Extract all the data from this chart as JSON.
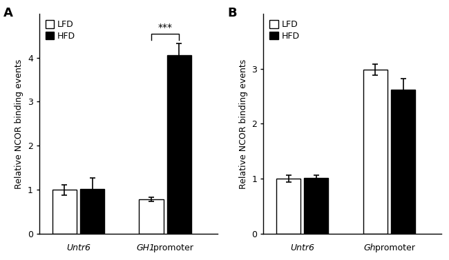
{
  "panel_A": {
    "label": "A",
    "group_label_parts": [
      {
        "italic": "Untr6",
        "normal": ""
      },
      {
        "italic": "GH1",
        "normal": " promoter"
      }
    ],
    "LFD_values": [
      1.0,
      0.78
    ],
    "HFD_values": [
      1.02,
      4.05
    ],
    "LFD_errors": [
      0.12,
      0.05
    ],
    "HFD_errors": [
      0.25,
      0.28
    ],
    "ylabel": "Relative NCOR binding events",
    "ylim": [
      0,
      5
    ],
    "yticks": [
      0,
      1,
      2,
      3,
      4
    ],
    "sig_y": 4.55,
    "sig_tick": 0.15,
    "sig_text": "***"
  },
  "panel_B": {
    "label": "B",
    "group_label_parts": [
      {
        "italic": "Untr6",
        "normal": ""
      },
      {
        "italic": "Gh",
        "normal": " promoter"
      }
    ],
    "LFD_values": [
      1.0,
      2.98
    ],
    "HFD_values": [
      1.02,
      2.62
    ],
    "LFD_errors": [
      0.06,
      0.1
    ],
    "HFD_errors": [
      0.04,
      0.2
    ],
    "ylabel": "Relative NCOR binding events",
    "ylim": [
      0,
      4
    ],
    "yticks": [
      0,
      1,
      2,
      3
    ]
  },
  "bar_width": 0.28,
  "bar_gap": 0.04,
  "group_centers": [
    0.5,
    1.5
  ],
  "xlim": [
    0.05,
    2.1
  ],
  "lfd_color": "#ffffff",
  "hfd_color": "#000000",
  "edge_color": "#000000",
  "font_size": 9,
  "label_font_size": 13,
  "capsize": 3,
  "elinewidth": 1.2,
  "capthick": 1.2
}
